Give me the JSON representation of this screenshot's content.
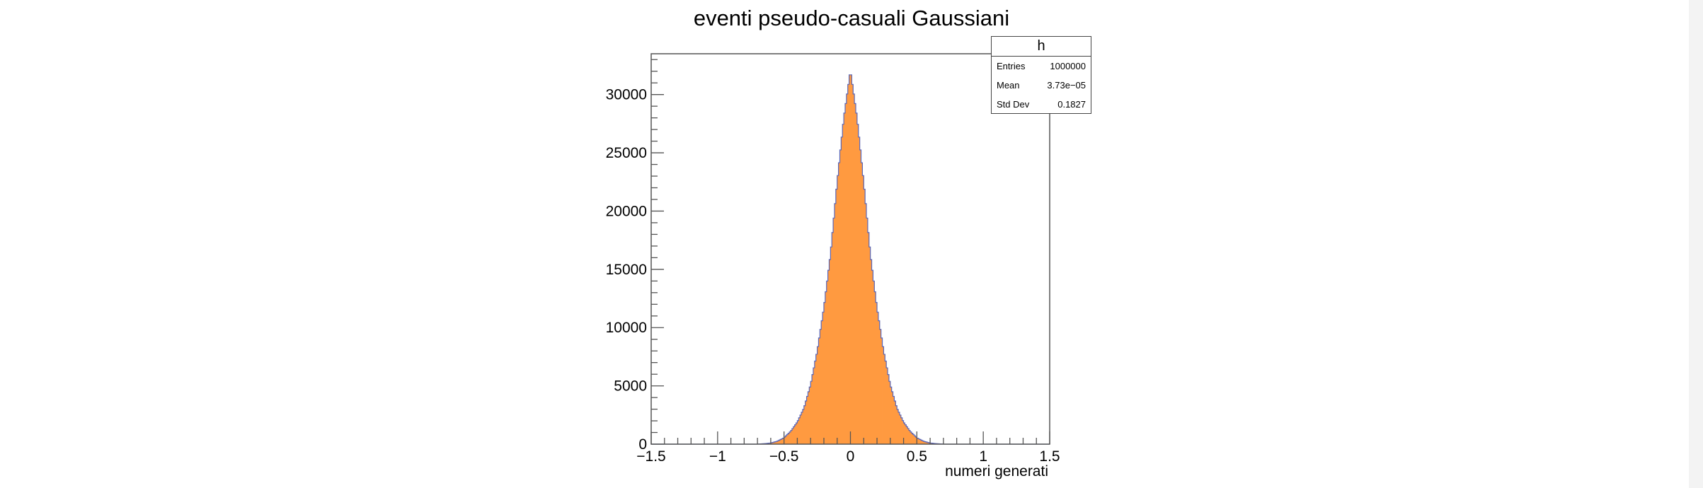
{
  "title": "eventi pseudo-casuali Gaussiani",
  "stats": {
    "name": "h",
    "rows": [
      {
        "label": "Entries",
        "value": "1000000"
      },
      {
        "label": "Mean",
        "value": "3.73e−05"
      },
      {
        "label": "Std Dev",
        "value": "0.1827"
      }
    ]
  },
  "chart_data": {
    "type": "bar",
    "histogram": true,
    "title": "eventi pseudo-casuali Gaussiani",
    "xlabel": "numeri generati",
    "ylabel": "",
    "xlim": [
      -1.5,
      1.5
    ],
    "ylim": [
      0,
      33500
    ],
    "nbins": 300,
    "bin_width": 0.01,
    "x_ticks": [
      -1.5,
      -1,
      -0.5,
      0,
      0.5,
      1,
      1.5
    ],
    "x_tick_labels": [
      "−1.5",
      "−1",
      "−0.5",
      "0",
      "0.5",
      "1",
      "1.5"
    ],
    "y_ticks": [
      0,
      5000,
      10000,
      15000,
      20000,
      25000,
      30000
    ],
    "y_tick_labels": [
      "0",
      "5000",
      "10000",
      "15000",
      "20000",
      "25000",
      "30000"
    ],
    "series": [
      {
        "x": [
          -0.7,
          -0.65,
          -0.6,
          -0.55,
          -0.5,
          -0.45,
          -0.4,
          -0.35,
          -0.3,
          -0.25,
          -0.2,
          -0.15,
          -0.1,
          -0.05,
          0,
          0.05,
          0.1,
          0.15,
          0.2,
          0.25,
          0.3,
          0.35,
          0.4,
          0.45,
          0.5,
          0.55,
          0.6,
          0.65,
          0.7
        ],
        "values": [
          10,
          40,
          100,
          250,
          550,
          1100,
          1900,
          3100,
          5100,
          8000,
          11700,
          16300,
          22500,
          28000,
          32100,
          28000,
          22500,
          16300,
          11700,
          8000,
          5100,
          3100,
          1900,
          1100,
          550,
          250,
          100,
          40,
          10
        ]
      }
    ],
    "colors": {
      "fill": "#ff9a40",
      "line": "#5865b8",
      "axis": "#555555"
    },
    "grid": false,
    "legend": "top-right"
  }
}
